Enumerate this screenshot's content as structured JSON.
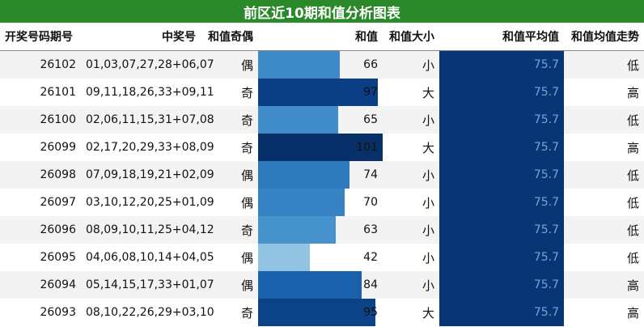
{
  "title": "前区近10期和值分析图表",
  "headers": {
    "period": "开奖号码期号",
    "numbers": "中奖号",
    "parity": "和值奇偶",
    "sum": "和值",
    "size": "和值大小",
    "avg": "和值平均值",
    "trend": "和值均值走势"
  },
  "sum_scale_max": 101,
  "rows": [
    {
      "period": "26102",
      "numbers": "01,03,07,27,28+06,07",
      "parity": "偶",
      "sum": 66,
      "size": "小",
      "avg": "75.7",
      "trend": "低",
      "bar_color": "#3f8ac8"
    },
    {
      "period": "26101",
      "numbers": "09,11,18,26,33+09,11",
      "parity": "奇",
      "sum": 97,
      "size": "大",
      "avg": "75.7",
      "trend": "高",
      "bar_color": "#0a3f86"
    },
    {
      "period": "26100",
      "numbers": "02,06,11,15,31+07,08",
      "parity": "奇",
      "sum": 65,
      "size": "小",
      "avg": "75.7",
      "trend": "低",
      "bar_color": "#418dc9"
    },
    {
      "period": "26099",
      "numbers": "02,17,20,29,33+08,09",
      "parity": "奇",
      "sum": 101,
      "size": "大",
      "avg": "75.7",
      "trend": "高",
      "bar_color": "#083068"
    },
    {
      "period": "26098",
      "numbers": "07,09,18,19,21+02,09",
      "parity": "偶",
      "sum": 74,
      "size": "小",
      "avg": "75.7",
      "trend": "低",
      "bar_color": "#2f79bd"
    },
    {
      "period": "26097",
      "numbers": "03,10,12,20,25+01,09",
      "parity": "偶",
      "sum": 70,
      "size": "小",
      "avg": "75.7",
      "trend": "低",
      "bar_color": "#3782c3"
    },
    {
      "period": "26096",
      "numbers": "08,09,10,11,25+04,12",
      "parity": "奇",
      "sum": 63,
      "size": "小",
      "avg": "75.7",
      "trend": "低",
      "bar_color": "#4592cc"
    },
    {
      "period": "26095",
      "numbers": "04,06,08,10,14+04,05",
      "parity": "偶",
      "sum": 42,
      "size": "小",
      "avg": "75.7",
      "trend": "低",
      "bar_color": "#93c3e2"
    },
    {
      "period": "26094",
      "numbers": "05,14,15,17,33+01,07",
      "parity": "偶",
      "sum": 84,
      "size": "小",
      "avg": "75.7",
      "trend": "高",
      "bar_color": "#1a60ad"
    },
    {
      "period": "26093",
      "numbers": "08,10,22,26,29+03,10",
      "parity": "奇",
      "sum": 95,
      "size": "大",
      "avg": "75.7",
      "trend": "高",
      "bar_color": "#0b4389"
    }
  ]
}
